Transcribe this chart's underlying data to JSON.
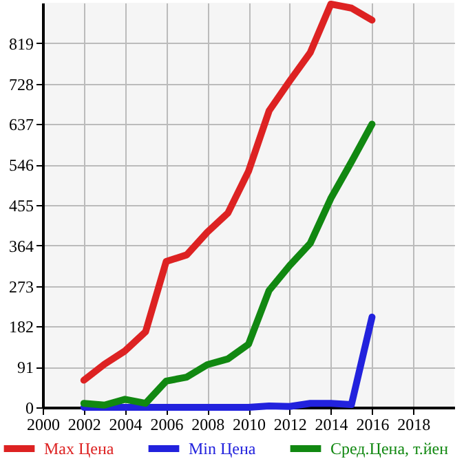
{
  "chart_data": {
    "type": "line",
    "x": [
      2002,
      2003,
      2004,
      2005,
      2006,
      2007,
      2008,
      2009,
      2010,
      2011,
      2012,
      2013,
      2014,
      2015,
      2016
    ],
    "series": [
      {
        "name": "Max Цена",
        "color": "#dd2222",
        "values": [
          61,
          97,
          127,
          170,
          328,
          343,
          394,
          437,
          531,
          667,
          734,
          798,
          907,
          898,
          871
        ]
      },
      {
        "name": "Min Цена",
        "color": "#2222dd",
        "values": [
          0,
          0,
          0,
          0,
          0,
          0,
          0,
          0,
          0,
          3,
          2,
          9,
          9,
          6,
          203
        ]
      },
      {
        "name": "Сред.Цена, т.йен",
        "color": "#118811",
        "values": [
          9,
          5,
          18,
          9,
          59,
          68,
          96,
          109,
          142,
          263,
          319,
          369,
          470,
          552,
          637
        ]
      }
    ],
    "xlim": [
      2000,
      2020
    ],
    "xticks": [
      2000,
      2002,
      2004,
      2006,
      2008,
      2010,
      2012,
      2014,
      2016,
      2018
    ],
    "ylim": [
      0,
      910
    ],
    "yticks": [
      0,
      91,
      182,
      273,
      364,
      455,
      546,
      637,
      728,
      819
    ],
    "grid": true,
    "legend": "bottom",
    "marker": "none",
    "line_style": "solid"
  }
}
